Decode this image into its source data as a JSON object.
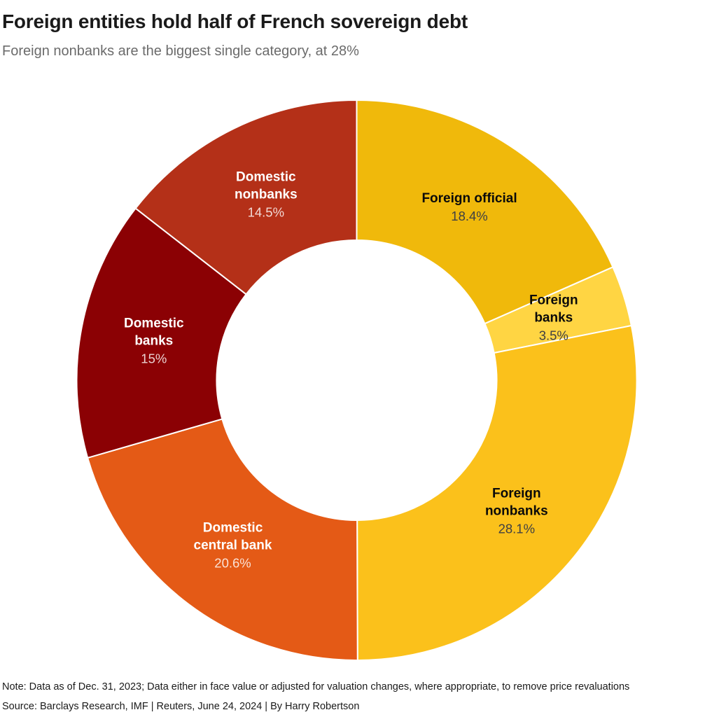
{
  "header": {
    "title": "Foreign entities hold half of French sovereign debt",
    "subtitle": "Foreign nonbanks are the biggest single category, at 28%"
  },
  "chart_data": {
    "type": "pie",
    "variant": "donut",
    "title": "Foreign entities hold half of French sovereign debt",
    "subtitle": "Foreign nonbanks are the biggest single category, at 28%",
    "unit": "%",
    "start_position": "top",
    "direction": "clockwise",
    "separator_color": "#ffffff",
    "segments": [
      {
        "label": "Foreign official",
        "label_lines": [
          "Foreign official"
        ],
        "value": 18.4,
        "value_label": "18.4%",
        "color": "#F0B90B",
        "label_color": "#0a0a0a",
        "value_color": "#3f4043"
      },
      {
        "label": "Foreign banks",
        "label_lines": [
          "Foreign",
          "banks"
        ],
        "value": 3.5,
        "value_label": "3.5%",
        "color": "#FFD543",
        "label_color": "#0a0a0a",
        "value_color": "#3f4043"
      },
      {
        "label": "Foreign nonbanks",
        "label_lines": [
          "Foreign",
          "nonbanks"
        ],
        "value": 28.1,
        "value_label": "28.1%",
        "color": "#FBC11B",
        "label_color": "#0a0a0a",
        "value_color": "#3f4043"
      },
      {
        "label": "Domestic central bank",
        "label_lines": [
          "Domestic",
          "central bank"
        ],
        "value": 20.6,
        "value_label": "20.6%",
        "color": "#E45A16",
        "label_color": "#ffffff",
        "value_color": "rgba(255,255,255,0.82)"
      },
      {
        "label": "Domestic banks",
        "label_lines": [
          "Domestic",
          "banks"
        ],
        "value": 15,
        "value_label": "15%",
        "color": "#8B0104",
        "label_color": "#ffffff",
        "value_color": "rgba(255,255,255,0.82)"
      },
      {
        "label": "Domestic nonbanks",
        "label_lines": [
          "Domestic",
          "nonbanks"
        ],
        "value": 14.5,
        "value_label": "14.5%",
        "color": "#B43018",
        "label_color": "#ffffff",
        "value_color": "rgba(255,255,255,0.82)"
      }
    ]
  },
  "footer": {
    "note": "Note: Data as of Dec. 31, 2023; Data either in face value or adjusted for valuation changes, where appropriate, to remove price revaluations",
    "source": "Source: Barclays Research, IMF | Reuters, June 24, 2024 | By Harry Robertson"
  }
}
